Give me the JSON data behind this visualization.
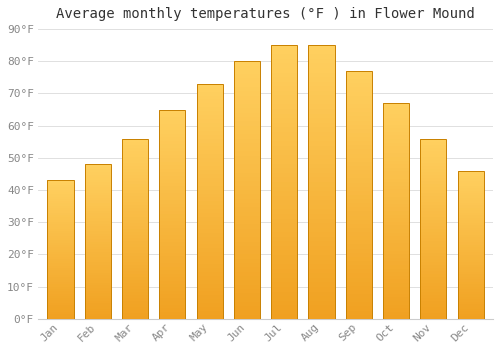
{
  "title": "Average monthly temperatures (°F ) in Flower Mound",
  "months": [
    "Jan",
    "Feb",
    "Mar",
    "Apr",
    "May",
    "Jun",
    "Jul",
    "Aug",
    "Sep",
    "Oct",
    "Nov",
    "Dec"
  ],
  "values": [
    43,
    48,
    56,
    65,
    73,
    80,
    85,
    85,
    77,
    67,
    56,
    46
  ],
  "bar_color_top": "#FFD060",
  "bar_color_bottom": "#F0A020",
  "bar_edge_color": "#C88000",
  "background_color": "#FFFFFF",
  "grid_color": "#e0e0e0",
  "ylim": [
    0,
    90
  ],
  "yticks": [
    0,
    10,
    20,
    30,
    40,
    50,
    60,
    70,
    80,
    90
  ],
  "ytick_labels": [
    "0°F",
    "10°F",
    "20°F",
    "30°F",
    "40°F",
    "50°F",
    "60°F",
    "70°F",
    "80°F",
    "90°F"
  ],
  "title_fontsize": 10,
  "tick_fontsize": 8,
  "bar_width": 0.7
}
